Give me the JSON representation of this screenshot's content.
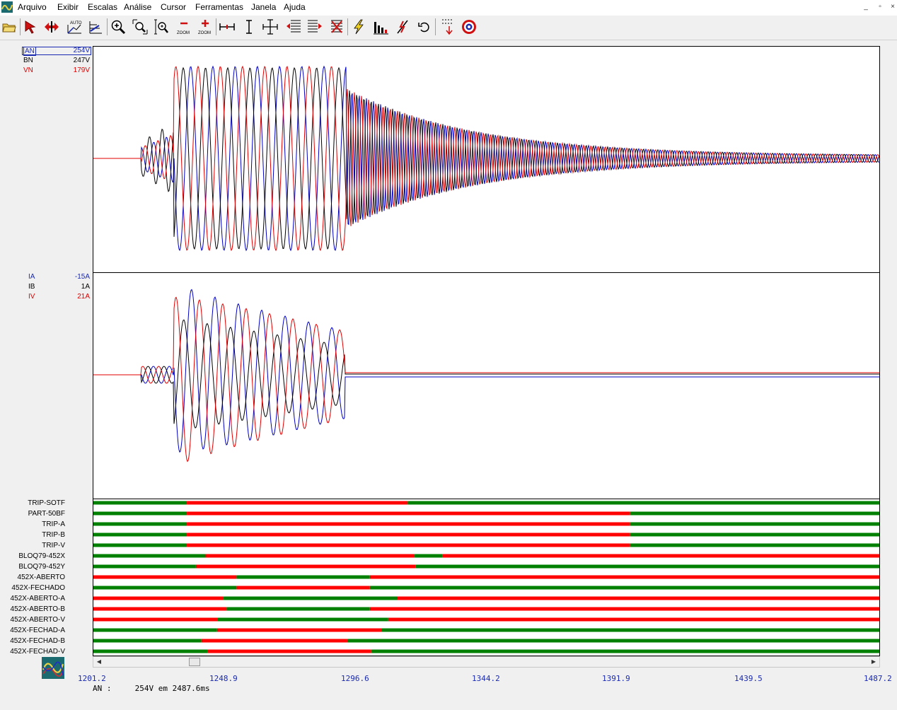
{
  "menu": [
    "Arquivo",
    "Exibir",
    "Escalas",
    "Análise",
    "Cursor",
    "Ferramentas",
    "Janela",
    "Ajuda"
  ],
  "window_buttons": {
    "minimize": "_",
    "restore": "▫",
    "close": "×"
  },
  "toolbar": {
    "auto_label": "AUTO",
    "zoom_out_label": "ZOOM",
    "zoom_in_label": "ZOOM"
  },
  "colors": {
    "phase_a": "#0000c0",
    "phase_b": "#000000",
    "phase_v": "#e00000",
    "digital_on": "#ff0000",
    "digital_off": "#008000"
  },
  "voltage_panel": {
    "channels": [
      {
        "name": "AN",
        "value": "254V",
        "color": "#1a2ab0",
        "selected": true
      },
      {
        "name": "BN",
        "value": "247V",
        "color": "#000000",
        "selected": false
      },
      {
        "name": "VN",
        "value": "179V",
        "color": "#e00000",
        "selected": false
      }
    ]
  },
  "current_panel": {
    "channels": [
      {
        "name": "IA",
        "value": "-15A",
        "color": "#1a2ab0"
      },
      {
        "name": "IB",
        "value": "1A",
        "color": "#000000"
      },
      {
        "name": "IV",
        "value": "21A",
        "color": "#e00000"
      }
    ]
  },
  "digital_channels": [
    {
      "name": "TRIP-SOTF",
      "initial": 0,
      "transitions": [
        1235.2,
        1315.6
      ]
    },
    {
      "name": "PART-50BF",
      "initial": 0,
      "transitions": [
        1235.2,
        1396.5
      ]
    },
    {
      "name": "TRIP-A",
      "initial": 0,
      "transitions": [
        1235.2,
        1396.5
      ]
    },
    {
      "name": "TRIP-B",
      "initial": 0,
      "transitions": [
        1235.2,
        1396.5
      ]
    },
    {
      "name": "TRIP-V",
      "initial": 0,
      "transitions": [
        1235.2,
        1396.5
      ]
    },
    {
      "name": "BLOQ79-452X",
      "initial": 0,
      "transitions": [
        1242.0,
        1318.1,
        1328.3
      ]
    },
    {
      "name": "BLOQ79-452Y",
      "initial": 0,
      "transitions": [
        1238.5,
        1318.5
      ]
    },
    {
      "name": "452X-ABERTO",
      "initial": 1,
      "transitions": [
        1253.3,
        1301.8
      ]
    },
    {
      "name": "452X-FECHADO",
      "initial": 0,
      "transitions": [
        1253.3,
        1301.8
      ]
    },
    {
      "name": "452X-ABERTO-A",
      "initial": 1,
      "transitions": [
        1248.6,
        1311.9
      ]
    },
    {
      "name": "452X-ABERTO-B",
      "initial": 1,
      "transitions": [
        1249.7,
        1301.8
      ]
    },
    {
      "name": "452X-ABERTO-V",
      "initial": 1,
      "transitions": [
        1246.5,
        1308.5
      ]
    },
    {
      "name": "452X-FECHAD-A",
      "initial": 0,
      "transitions": [
        1246.2,
        1306.1
      ]
    },
    {
      "name": "452X-FECHAD-B",
      "initial": 0,
      "transitions": [
        1240.5,
        1293.6
      ]
    },
    {
      "name": "452X-FECHAD-V",
      "initial": 0,
      "transitions": [
        1242.8,
        1302.3
      ]
    }
  ],
  "time_axis": {
    "start": 1201.2,
    "end": 1487.2,
    "ticks": [
      "1201.2",
      "1248.9",
      "1296.6",
      "1344.2",
      "1391.9",
      "1439.5",
      "1487.2"
    ]
  },
  "status_bar": {
    "channel": "AN :",
    "reading": "254V em 2487.6ms"
  }
}
